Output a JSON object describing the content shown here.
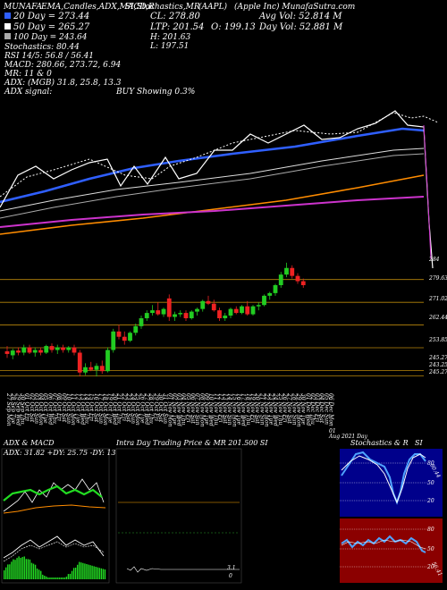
{
  "header": {
    "line1": "MUNAFA",
    "line1_rest": "EMA,Candles,ADX,MACD,R",
    "line1_mid": "SI,Stochastics,MR",
    "line1_sym": "(AAPL)",
    "line1_company": "(Apple Inc) MunafaSutra.com",
    "ema20": "20 Day = 273.44",
    "ema50": "50 Day = 265.27",
    "ema100": "100 Day = 243.64",
    "stochastics": "Stochastics: 80.44",
    "rsi": "RSI 14/5: 56.8 / 56.41",
    "macd": "MACD: 280.66, 273.72, 6.94",
    "mr": "MR: 11 & 0",
    "adx": "ADX: (MGB) 31.8, 25.8, 13.3",
    "adx_signal_label": "ADX signal:",
    "adx_signal_value": "BUY Showing 0.3%",
    "cl": "CL: 278.80",
    "ltp": "LTP: 201.54",
    "open": "O: 199.13",
    "high": "H: 201.63",
    "low": "L: 197.51",
    "avg_vol": "Avg Vol: 52.814  M",
    "day_vol": "Day Vol: 52.881 M",
    "colors": {
      "ema20": "#2f5fff",
      "ema50": "#ffffff",
      "ema100": "#aaaaaa"
    }
  },
  "chart_data": {
    "type": "candlestick",
    "y_labels": [
      "284",
      "279.63",
      "271.02",
      "262.44",
      "253.85",
      "245.27",
      "243.25",
      "245.27"
    ],
    "x_labels": [
      "27 Sep Mon",
      "28 Sep Tue",
      "29 Sep Wed",
      "30 Sep Thu",
      "01 Oct Fri",
      "02 Oct Sat",
      "03 Oct Sun",
      "04 Oct Mon",
      "05 Oct Tue",
      "06 Oct Wed",
      "07 Oct Thu",
      "08 Oct Fri",
      "09 Oct Sat",
      "10 Oct Sun",
      "11 Oct Mon",
      "12 Oct Tue",
      "13 Oct Wed",
      "14 Oct Thu",
      "15 Oct Fri",
      "16 Oct Sat",
      "17 Oct Sun",
      "18 Oct Mon",
      "19 Oct Tue",
      "20 Oct Wed",
      "21 Oct Thu",
      "22 Oct Fri",
      "23 Oct Sat",
      "24 Oct Sun",
      "25 Oct Mon",
      "26 Oct Tue",
      "27 Oct Wed",
      "28 Oct Thu",
      "29 Oct Fri",
      "30 Oct Sat",
      "31 Oct Sun",
      "01 Nov Mon",
      "02 Nov Tue",
      "03 Nov Wed",
      "04 Nov Thu",
      "05 Nov Fri",
      "06 Nov Sat",
      "07 Nov Sun",
      "08 Nov Mon",
      "09 Nov Tue",
      "10 Nov Wed",
      "11 Nov Thu",
      "12 Nov Fri",
      "13 Nov Sat",
      "14 Nov Sun",
      "15 Nov Mon",
      "16 Nov Tue",
      "17 Nov Wed",
      "18 Nov Thu",
      "19 Nov Fri",
      "20 Nov Sat",
      "21 Nov Sun",
      "22 Nov Mon",
      "23 Nov Tue",
      "24 Nov Wed",
      "25 Nov Thu",
      "26 Nov Fri",
      "27 Nov Sat",
      "28 Nov Sun",
      "29 Nov Mon",
      "30 Nov Tue",
      "01 Dec Wed",
      "02 Dec Thu",
      "03 Dec Fri",
      "04 Dec Sat",
      "05 Dec Sun",
      "06 Dec Mon",
      "07 Dec Tue",
      "08 Dec Wed"
    ],
    "candles": [
      {
        "o": 252.5,
        "h": 254.5,
        "l": 250.0,
        "c": 251.5
      },
      {
        "o": 251.0,
        "h": 253.5,
        "l": 249.5,
        "c": 252.8
      },
      {
        "o": 252.8,
        "h": 254.0,
        "l": 251.0,
        "c": 252.0
      },
      {
        "o": 252.0,
        "h": 255.0,
        "l": 251.0,
        "c": 254.0
      },
      {
        "o": 254.0,
        "h": 255.0,
        "l": 251.5,
        "c": 252.0
      },
      {
        "o": 252.0,
        "h": 254.0,
        "l": 250.5,
        "c": 253.0
      },
      {
        "o": 253.0,
        "h": 254.0,
        "l": 251.0,
        "c": 252.0
      },
      {
        "o": 252.0,
        "h": 255.0,
        "l": 251.5,
        "c": 254.5
      },
      {
        "o": 254.5,
        "h": 255.5,
        "l": 252.0,
        "c": 253.0
      },
      {
        "o": 253.0,
        "h": 255.0,
        "l": 251.5,
        "c": 254.0
      },
      {
        "o": 254.0,
        "h": 255.0,
        "l": 252.0,
        "c": 253.0
      },
      {
        "o": 253.0,
        "h": 254.5,
        "l": 252.0,
        "c": 254.0
      },
      {
        "o": 254.0,
        "h": 255.0,
        "l": 251.0,
        "c": 252.0
      },
      {
        "o": 252.0,
        "h": 253.0,
        "l": 243.0,
        "c": 244.5
      },
      {
        "o": 244.5,
        "h": 248.0,
        "l": 243.5,
        "c": 246.5
      },
      {
        "o": 246.5,
        "h": 248.5,
        "l": 245.0,
        "c": 245.5
      },
      {
        "o": 245.5,
        "h": 248.0,
        "l": 243.0,
        "c": 247.0
      },
      {
        "o": 247.0,
        "h": 249.0,
        "l": 244.0,
        "c": 245.0
      },
      {
        "o": 245.0,
        "h": 254.0,
        "l": 244.5,
        "c": 253.0
      },
      {
        "o": 253.0,
        "h": 261.0,
        "l": 252.0,
        "c": 260.0
      },
      {
        "o": 260.0,
        "h": 262.5,
        "l": 257.0,
        "c": 258.0
      },
      {
        "o": 258.0,
        "h": 260.0,
        "l": 255.0,
        "c": 256.5
      },
      {
        "o": 256.5,
        "h": 260.0,
        "l": 256.0,
        "c": 259.5
      },
      {
        "o": 259.5,
        "h": 263.0,
        "l": 258.5,
        "c": 262.0
      },
      {
        "o": 262.0,
        "h": 266.0,
        "l": 261.0,
        "c": 265.0
      },
      {
        "o": 265.0,
        "h": 268.0,
        "l": 264.0,
        "c": 267.0
      },
      {
        "o": 267.0,
        "h": 270.0,
        "l": 266.0,
        "c": 268.0
      },
      {
        "o": 268.0,
        "h": 271.0,
        "l": 266.0,
        "c": 266.5
      },
      {
        "o": 266.5,
        "h": 269.0,
        "l": 265.5,
        "c": 268.5
      },
      {
        "o": 272.5,
        "h": 274.0,
        "l": 264.0,
        "c": 265.5
      },
      {
        "o": 265.5,
        "h": 267.5,
        "l": 264.0,
        "c": 266.5
      },
      {
        "o": 266.5,
        "h": 268.0,
        "l": 265.5,
        "c": 267.0
      },
      {
        "o": 267.0,
        "h": 268.0,
        "l": 264.0,
        "c": 265.0
      },
      {
        "o": 265.0,
        "h": 268.0,
        "l": 264.5,
        "c": 267.5
      },
      {
        "o": 267.5,
        "h": 269.0,
        "l": 266.0,
        "c": 268.5
      },
      {
        "o": 268.5,
        "h": 272.0,
        "l": 267.5,
        "c": 271.5
      },
      {
        "o": 271.5,
        "h": 273.5,
        "l": 270.0,
        "c": 270.5
      },
      {
        "o": 270.5,
        "h": 272.0,
        "l": 267.5,
        "c": 268.0
      },
      {
        "o": 268.0,
        "h": 269.0,
        "l": 264.0,
        "c": 265.0
      },
      {
        "o": 265.0,
        "h": 267.0,
        "l": 264.0,
        "c": 266.0
      },
      {
        "o": 266.0,
        "h": 269.0,
        "l": 265.0,
        "c": 268.5
      },
      {
        "o": 268.5,
        "h": 269.5,
        "l": 266.5,
        "c": 267.0
      },
      {
        "o": 267.0,
        "h": 270.0,
        "l": 266.5,
        "c": 269.5
      },
      {
        "o": 269.5,
        "h": 271.5,
        "l": 266.0,
        "c": 266.5
      },
      {
        "o": 266.5,
        "h": 270.0,
        "l": 266.0,
        "c": 269.5
      },
      {
        "o": 269.5,
        "h": 271.0,
        "l": 268.0,
        "c": 270.0
      },
      {
        "o": 270.0,
        "h": 274.0,
        "l": 269.5,
        "c": 273.5
      },
      {
        "o": 273.5,
        "h": 275.0,
        "l": 272.0,
        "c": 274.5
      },
      {
        "o": 274.5,
        "h": 278.0,
        "l": 273.5,
        "c": 277.5
      },
      {
        "o": 277.5,
        "h": 282.5,
        "l": 276.5,
        "c": 281.5
      },
      {
        "o": 281.5,
        "h": 286.0,
        "l": 280.5,
        "c": 284.0
      },
      {
        "o": 284.0,
        "h": 285.0,
        "l": 280.0,
        "c": 281.0
      },
      {
        "o": 281.0,
        "h": 282.0,
        "l": 278.0,
        "c": 279.0
      },
      {
        "o": 279.0,
        "h": 280.0,
        "l": 276.5,
        "c": 277.5
      }
    ],
    "price_lines": [
      279.63,
      271.02,
      262.44,
      253.85,
      245.27,
      243.25
    ]
  },
  "panels": {
    "adx_title": "ADX  & MACD",
    "adx_values": "ADX: 31.82  +DY: 25.75  -DY: 13.32",
    "intraday_title": "Intra Day Trading Price  & MR   201.500  SI",
    "stoch_title": "Stochastics & R",
    "stoch_title2": "SI",
    "stoch_levels": [
      "80",
      "50",
      "20"
    ],
    "rsi_levels": [
      "80",
      "50",
      "20"
    ],
    "stoch_side": "80.44",
    "rsi_side": "56.41",
    "intraday_mr_label": "3.1",
    "intraday_zero": "0",
    "sub_note": "01",
    "sub_note2": "Aug 2021 Day"
  }
}
